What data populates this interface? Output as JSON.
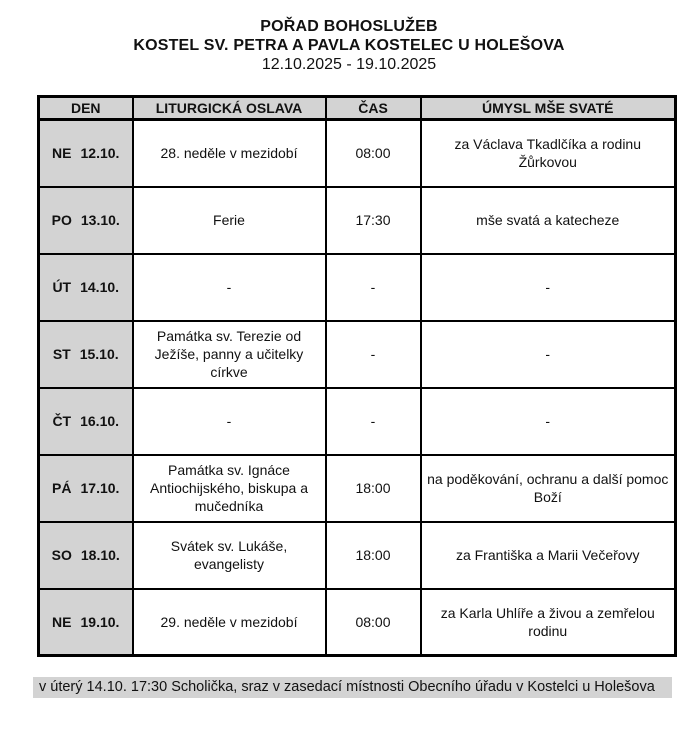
{
  "header": {
    "title": "POŘAD BOHOSLUŽEB",
    "subtitle": "KOSTEL SV. PETRA A PAVLA KOSTELEC U HOLEŠOVA",
    "date_range": "12.10.2025 - 19.10.2025"
  },
  "table": {
    "columns": [
      "DEN",
      "LITURGICKÁ OSLAVA",
      "ČAS",
      "ÚMYSL MŠE SVATÉ"
    ],
    "rows": [
      {
        "day": "NE",
        "date": "12.10.",
        "celebration": "28. neděle v mezidobí",
        "time": "08:00",
        "intention": "za Václava Tkadlčíka a rodinu Žůrkovou"
      },
      {
        "day": "PO",
        "date": "13.10.",
        "celebration": "Ferie",
        "time": "17:30",
        "intention": "mše svatá a katecheze"
      },
      {
        "day": "ÚT",
        "date": "14.10.",
        "celebration": "-",
        "time": "-",
        "intention": "-"
      },
      {
        "day": "ST",
        "date": "15.10.",
        "celebration": "Památka sv. Terezie od Ježíše, panny a učitelky církve",
        "time": "-",
        "intention": "-"
      },
      {
        "day": "ČT",
        "date": "16.10.",
        "celebration": "-",
        "time": "-",
        "intention": "-"
      },
      {
        "day": "PÁ",
        "date": "17.10.",
        "celebration": "Památka sv. Ignáce Antiochijského, biskupa a mučedníka",
        "time": "18:00",
        "intention": "na poděkování, ochranu a další pomoc Boží"
      },
      {
        "day": "SO",
        "date": "18.10.",
        "celebration": "Svátek sv. Lukáše, evangelisty",
        "time": "18:00",
        "intention": "za Františka a Marii Večeřovy"
      },
      {
        "day": "NE",
        "date": "19.10.",
        "celebration": "29. neděle v mezidobí",
        "time": "08:00",
        "intention": "za Karla Uhlíře a živou a zemřelou rodinu"
      }
    ]
  },
  "footer": {
    "note": "v úterý 14.10. 17:30 Scholička, sraz v zasedací místnosti Obecního úřadu v Kostelci u Holešova"
  },
  "colors": {
    "header_bg": "#d3d3d3",
    "day_column_bg": "#d3d3d3",
    "note_bg": "#d3d3d3",
    "border": "#000000",
    "page_bg": "#ffffff"
  }
}
